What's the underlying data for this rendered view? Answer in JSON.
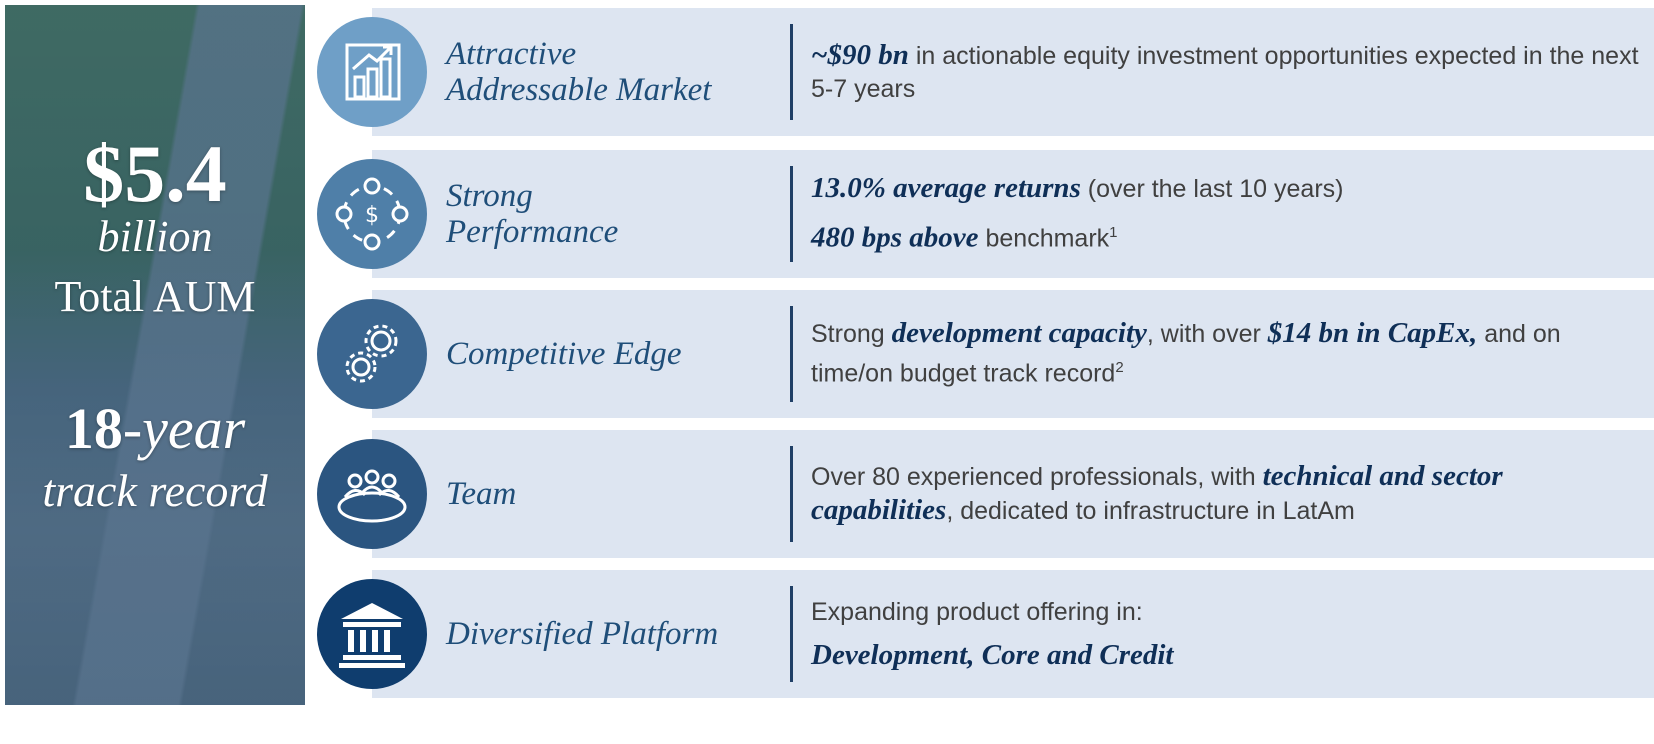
{
  "panel": {
    "aum_value": "$5.4",
    "aum_unit": "billion",
    "aum_label": "Total AUM",
    "track_number": "18",
    "track_unit": "-year",
    "track_label": "track record"
  },
  "rows": [
    {
      "title": [
        "Attractive",
        "Addressable Market"
      ],
      "description": [
        [
          {
            "text": "~$90 bn",
            "bold": true
          },
          {
            "text": " in actionable equity investment opportunities expected in the next 5-7 years"
          }
        ]
      ]
    },
    {
      "title": [
        "Strong",
        "Performance"
      ],
      "description": [
        [
          {
            "text": "13.0% average returns",
            "bold": true
          },
          {
            "text": " (over the last 10 years)"
          }
        ],
        [
          {
            "text": "480 bps above",
            "bold": true
          },
          {
            "text": " benchmark"
          },
          {
            "text": "1",
            "sup": true
          }
        ]
      ]
    },
    {
      "title": [
        "Competitive Edge"
      ],
      "description": [
        [
          {
            "text": "Strong "
          },
          {
            "text": "development capacity",
            "bold": true
          },
          {
            "text": ", with over "
          },
          {
            "text": "$14 bn in CapEx,",
            "bold": true
          },
          {
            "text": " and on time/on budget track record"
          },
          {
            "text": "2",
            "sup": true
          }
        ]
      ]
    },
    {
      "title": [
        "Team"
      ],
      "description": [
        [
          {
            "text": "Over 80 experienced professionals, with "
          },
          {
            "text": "technical and sector capabilities",
            "bold": true
          },
          {
            "text": ", dedicated to infrastructure in LatAm"
          }
        ]
      ]
    },
    {
      "title": [
        "Diversified Platform"
      ],
      "description": [
        [
          {
            "text": "Expanding product offering in:"
          }
        ],
        [
          {
            "text": "Development, Core and Credit",
            "bold": true
          }
        ]
      ]
    }
  ]
}
